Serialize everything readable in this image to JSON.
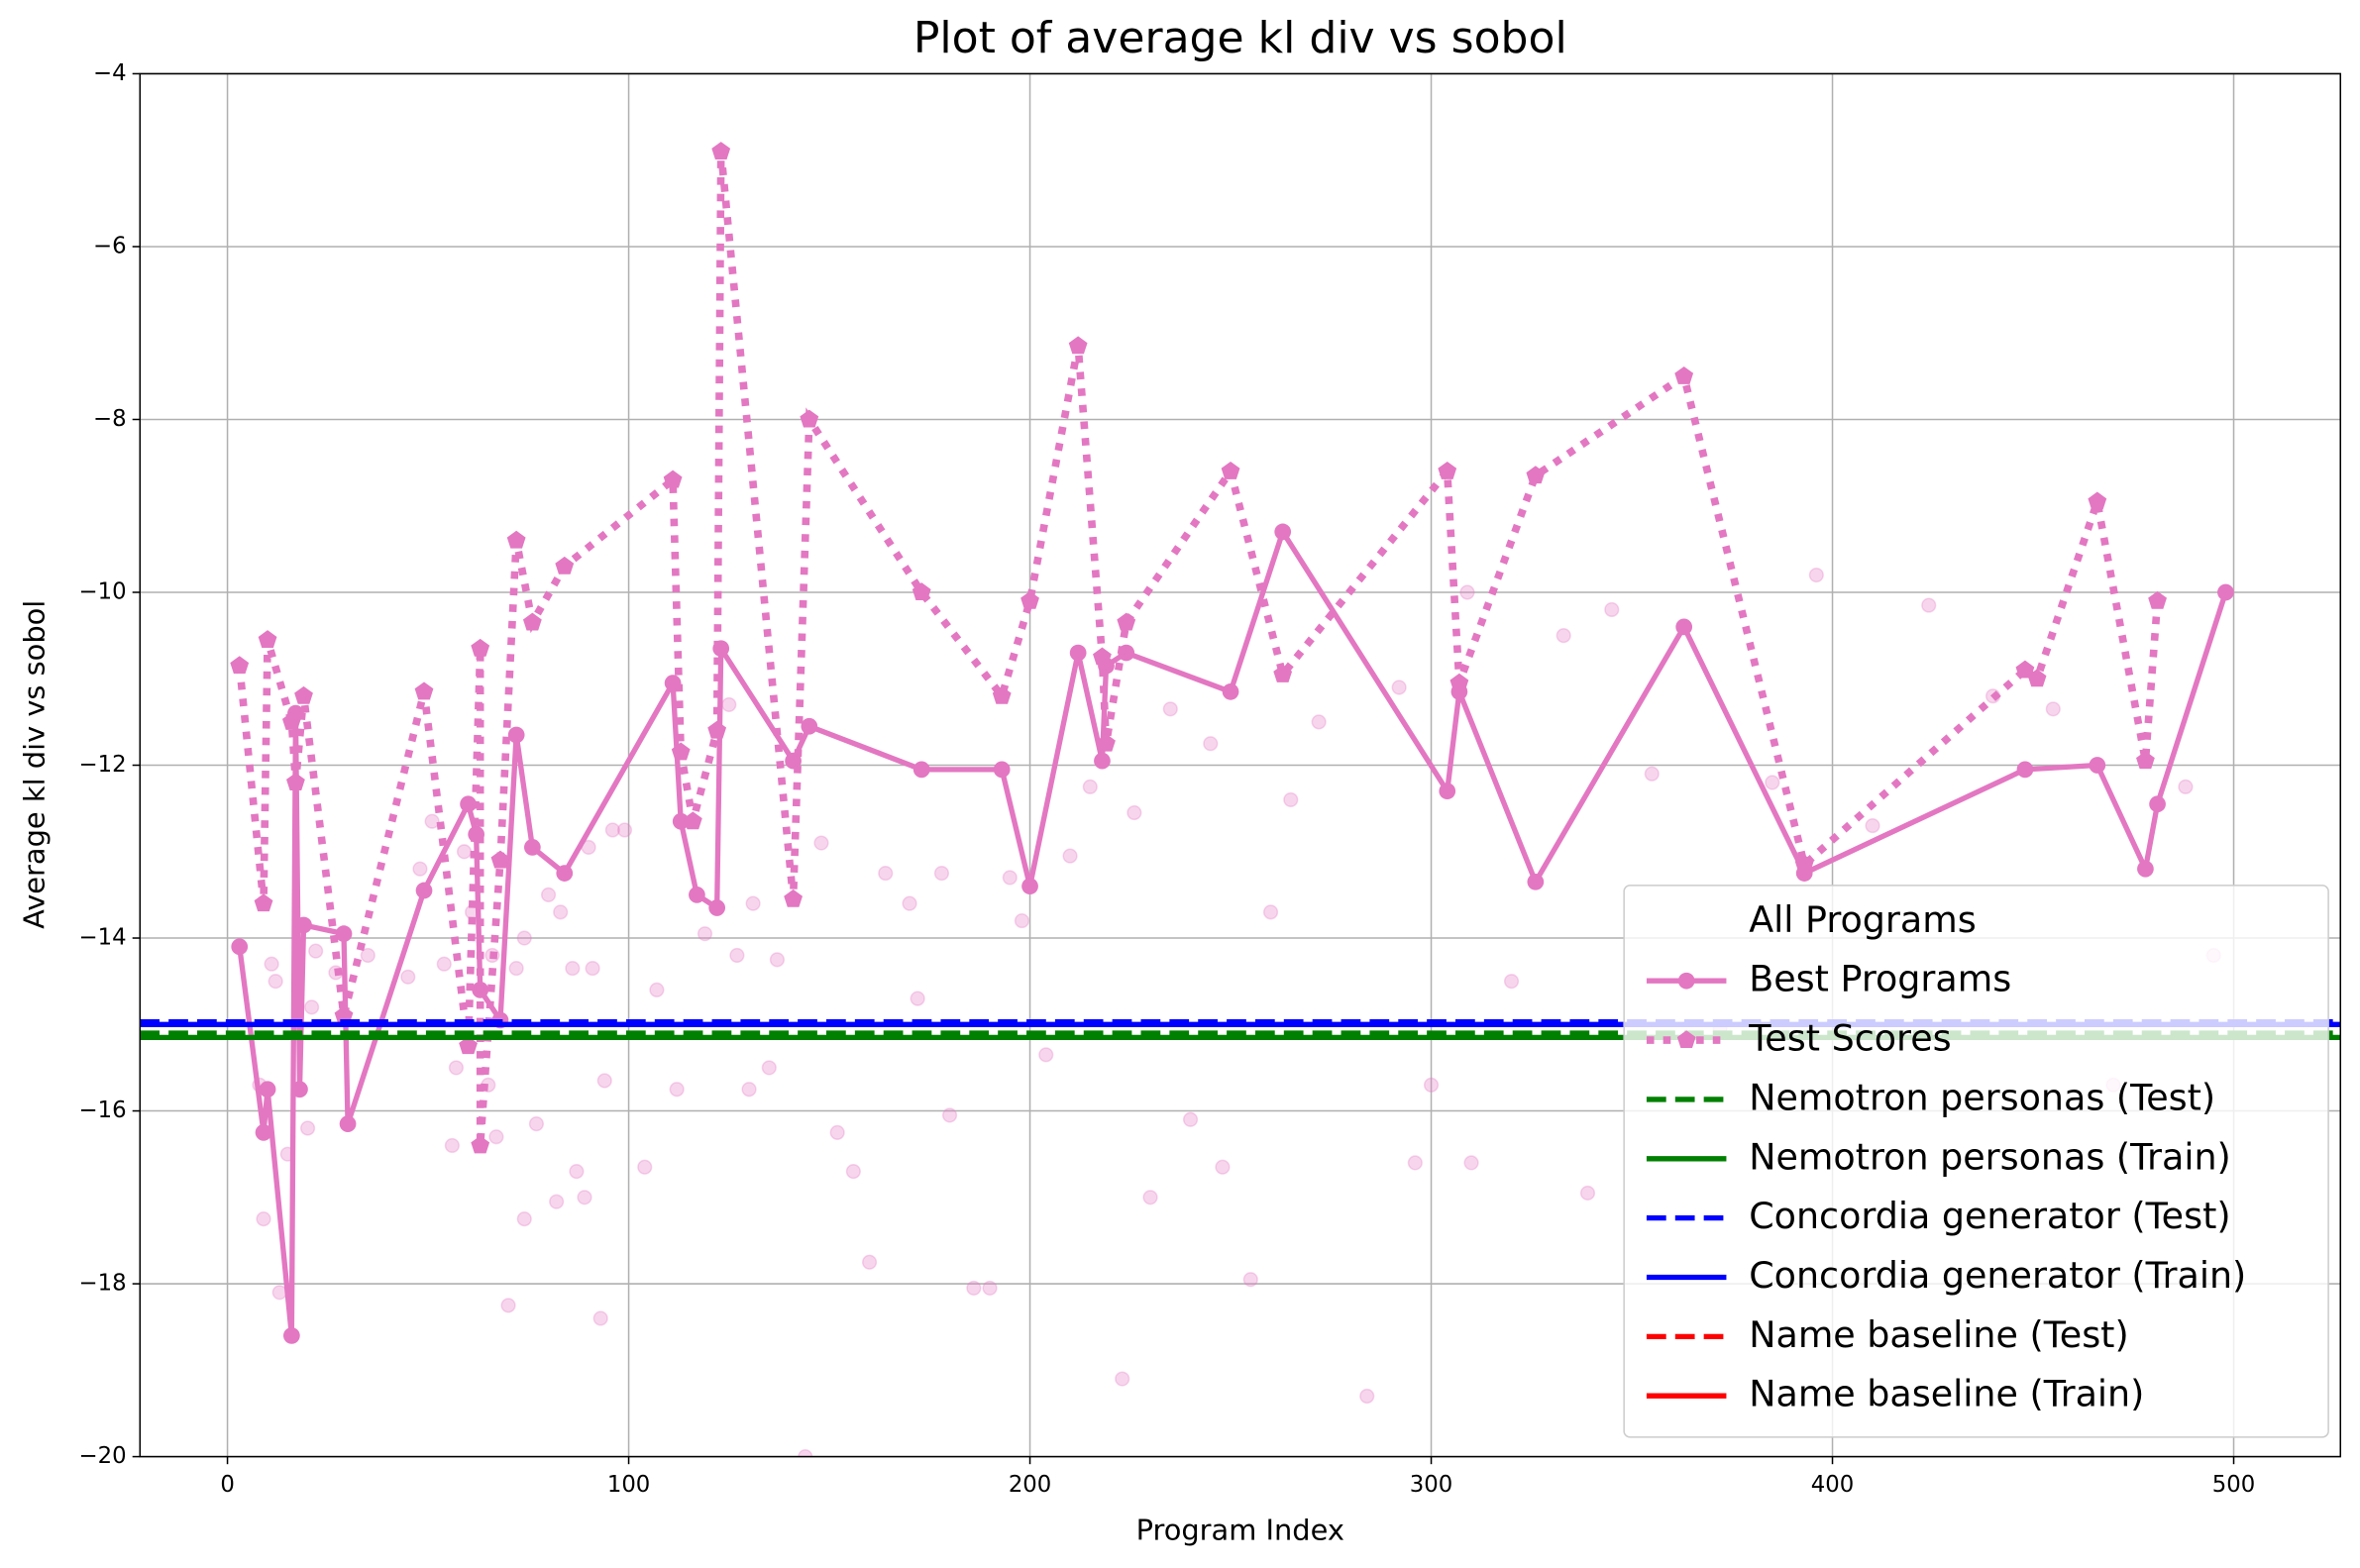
{
  "chart_data": {
    "type": "line",
    "title": "Plot of average kl div vs sobol",
    "x_label": "Program Index",
    "y_label": "Average kl div vs sobol",
    "xlim": [
      -21.8,
      526.6
    ],
    "ylim": [
      -20,
      -4
    ],
    "xticks": [
      0,
      100,
      200,
      300,
      400,
      500
    ],
    "yticks": [
      {
        "value": -20,
        "label": "−20"
      },
      {
        "value": -18,
        "label": "−18"
      },
      {
        "value": -16,
        "label": "−16"
      },
      {
        "value": -14,
        "label": "−14"
      },
      {
        "value": -12,
        "label": "−12"
      },
      {
        "value": -10,
        "label": "−10"
      },
      {
        "value": -8,
        "label": "−8"
      },
      {
        "value": -6,
        "label": "−6"
      },
      {
        "value": -4,
        "label": "−4"
      }
    ],
    "grid": true,
    "legend": "lower right",
    "series": [
      {
        "name": "All Programs",
        "color": "#e377c2",
        "style": "scatter",
        "x": [
          8,
          9,
          11,
          12,
          13,
          15,
          20,
          22,
          21,
          27,
          35,
          45,
          48,
          51,
          54,
          56,
          57,
          59,
          61,
          65,
          66,
          67,
          70,
          72,
          74,
          74,
          77,
          80,
          82,
          83,
          86,
          87,
          89,
          90,
          91,
          93,
          94,
          96,
          99,
          104,
          107,
          112,
          119,
          125,
          127,
          130,
          131,
          135,
          137,
          144,
          148,
          152,
          156,
          160,
          164,
          170,
          172,
          178,
          180,
          186,
          190,
          195,
          198,
          204,
          210,
          215,
          223,
          226,
          230,
          235,
          240,
          245,
          248,
          255,
          260,
          265,
          272,
          284,
          292,
          296,
          300,
          309,
          310,
          320,
          333,
          339,
          345,
          355,
          372,
          385,
          396,
          410,
          424,
          440,
          455,
          470,
          488,
          495
        ],
        "values": [
          -15.7,
          -17.25,
          -14.3,
          -14.5,
          -18.1,
          -16.5,
          -16.2,
          -14.15,
          -14.8,
          -14.4,
          -14.2,
          -14.45,
          -13.2,
          -12.65,
          -14.3,
          -16.4,
          -15.5,
          -13.0,
          -13.7,
          -15.7,
          -14.2,
          -16.3,
          -18.25,
          -14.35,
          -17.25,
          -14.0,
          -16.15,
          -13.5,
          -17.05,
          -13.7,
          -14.35,
          -16.7,
          -17.0,
          -12.95,
          -14.35,
          -18.4,
          -15.65,
          -12.75,
          -12.75,
          -16.65,
          -14.6,
          -15.75,
          -13.95,
          -11.3,
          -14.2,
          -15.75,
          -13.6,
          -15.5,
          -14.25,
          -20.0,
          -12.9,
          -16.25,
          -16.7,
          -17.75,
          -13.25,
          -13.6,
          -14.7,
          -13.25,
          -16.05,
          -18.05,
          -18.05,
          -13.3,
          -13.8,
          -15.35,
          -13.05,
          -12.25,
          -19.1,
          -12.55,
          -17.0,
          -11.35,
          -16.1,
          -11.75,
          -16.65,
          -17.95,
          -13.7,
          -12.4,
          -11.5,
          -19.3,
          -11.1,
          -16.6,
          -15.7,
          -10.0,
          -16.6,
          -14.5,
          -10.5,
          -16.95,
          -10.2,
          -12.1,
          -15.05,
          -12.2,
          -9.8,
          -12.7,
          -10.15,
          -11.2,
          -11.35,
          -15.7,
          -12.25,
          -14.2
        ]
      },
      {
        "name": "Best Programs",
        "color": "#e377c2",
        "style": "line-marker",
        "x": [
          3,
          9,
          10,
          16,
          17,
          18,
          19,
          29,
          30,
          49,
          60,
          62,
          63,
          68,
          72,
          76,
          84,
          111,
          113,
          117,
          122,
          123,
          141,
          145,
          173,
          193,
          200,
          212,
          218,
          219,
          224,
          250,
          263,
          304,
          307,
          326,
          363,
          393,
          448,
          466,
          478,
          481,
          498
        ],
        "values": [
          -14.1,
          -16.25,
          -15.75,
          -18.6,
          -11.4,
          -15.75,
          -13.85,
          -13.95,
          -16.15,
          -13.45,
          -12.45,
          -12.8,
          -14.6,
          -14.95,
          -11.65,
          -12.95,
          -13.25,
          -11.05,
          -12.65,
          -13.5,
          -13.65,
          -10.65,
          -11.95,
          -11.55,
          -12.05,
          -12.05,
          -13.4,
          -10.7,
          -11.95,
          -10.85,
          -10.7,
          -11.15,
          -9.3,
          -12.3,
          -11.15,
          -13.35,
          -10.4,
          -13.25,
          -12.05,
          -12.0,
          -13.2,
          -12.45,
          -10.0
        ]
      },
      {
        "name": "Test Scores",
        "color": "#e377c2",
        "style": "dotted-pentagon",
        "x": [
          3,
          9,
          10,
          16,
          17,
          19,
          29,
          49,
          60,
          63,
          63,
          68,
          72,
          76,
          84,
          111,
          113,
          116,
          122,
          123,
          141,
          145,
          173,
          193,
          200,
          212,
          218,
          219,
          224,
          250,
          263,
          304,
          307,
          326,
          363,
          393,
          448,
          451,
          466,
          478,
          481
        ],
        "values": [
          -10.85,
          -13.6,
          -10.55,
          -11.5,
          -12.2,
          -11.2,
          -14.9,
          -11.15,
          -15.25,
          -10.65,
          -16.4,
          -13.1,
          -9.4,
          -10.35,
          -9.7,
          -8.7,
          -11.85,
          -12.65,
          -11.6,
          -4.9,
          -13.55,
          -8.0,
          -10.0,
          -11.2,
          -10.1,
          -7.15,
          -10.75,
          -11.75,
          -10.35,
          -8.6,
          -10.95,
          -8.6,
          -11.05,
          -8.65,
          -7.5,
          -13.15,
          -10.9,
          -11.0,
          -8.95,
          -11.95,
          -10.1
        ]
      },
      {
        "name": "Nemotron personas (Test)",
        "color": "#008000",
        "style": "hline-dashed",
        "value": -15.1
      },
      {
        "name": "Nemotron personas (Train)",
        "color": "#008000",
        "style": "hline",
        "value": -15.15
      },
      {
        "name": "Concordia generator (Test)",
        "color": "#0000ff",
        "style": "hline-dashed",
        "value": -14.97
      },
      {
        "name": "Concordia generator (Train)",
        "color": "#0000ff",
        "style": "hline",
        "value": -15.0
      },
      {
        "name": "Name baseline (Test)",
        "color": "#ff0000",
        "style": "hline-dashed",
        "value": null
      },
      {
        "name": "Name baseline (Train)",
        "color": "#ff0000",
        "style": "hline",
        "value": null
      }
    ]
  }
}
